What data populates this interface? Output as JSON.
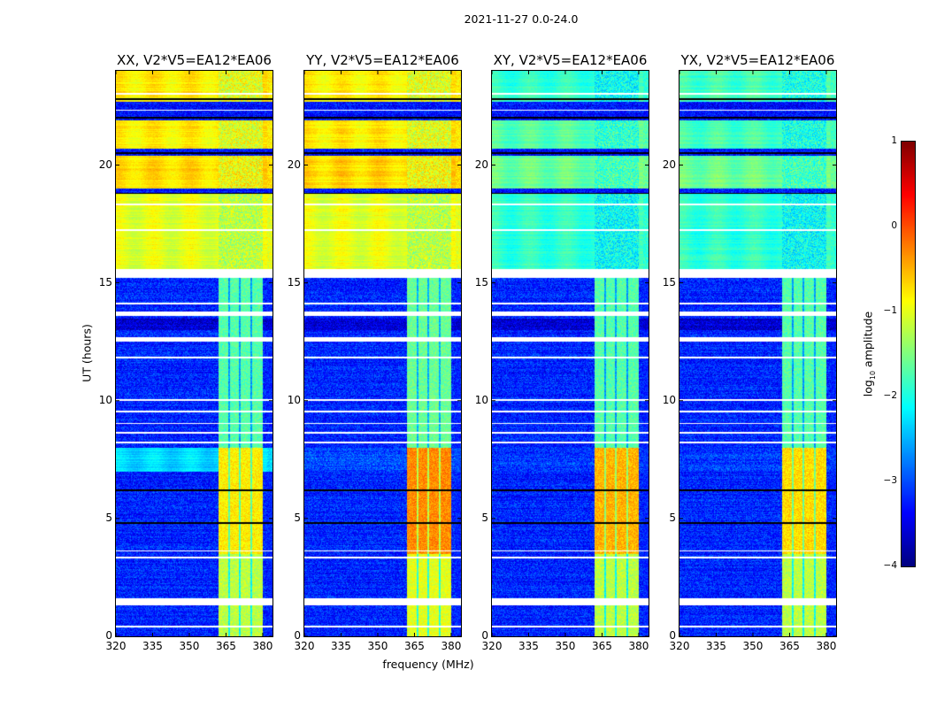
{
  "chart_data": {
    "type": "heatmap",
    "title": "2021-11-27 0.0-24.0",
    "xlabel": "frequency (MHz)",
    "ylabel": "UT (hours)",
    "xlim": [
      320,
      384
    ],
    "ylim": [
      0,
      24
    ],
    "xticks": [
      "320",
      "335",
      "350",
      "365",
      "380"
    ],
    "xtick_values": [
      320,
      335,
      350,
      365,
      380
    ],
    "yticks": [
      "0",
      "5",
      "10",
      "15",
      "20"
    ],
    "ytick_values": [
      0,
      5,
      10,
      15,
      20
    ],
    "panels": [
      {
        "title": "XX, V2*V5=EA12*EA06",
        "pol": "XX"
      },
      {
        "title": "YY, V2*V5=EA12*EA06",
        "pol": "YY"
      },
      {
        "title": "XY, V2*V5=EA12*EA06",
        "pol": "XY"
      },
      {
        "title": "YX, V2*V5=EA12*EA06",
        "pol": "YX"
      }
    ],
    "colorbar": {
      "label_prefix": "log",
      "label_sub": "10",
      "label_suffix": " amplitude",
      "colormap": "jet",
      "range": [
        -4,
        1
      ],
      "ticks": [
        "1",
        "0",
        "−1",
        "−2",
        "−3",
        "−4"
      ],
      "tick_values": [
        1,
        0,
        -1,
        -2,
        -3,
        -4
      ]
    },
    "background_segments": [
      {
        "t": [
          0,
          7.0
        ],
        "levels": [
          -3.2,
          -3.2,
          -3.2,
          -3.2
        ]
      },
      {
        "t": [
          7.0,
          8.0
        ],
        "levels": [
          -2.3,
          -3.0,
          -3.1,
          -3.1
        ]
      },
      {
        "t": [
          8.0,
          13.0
        ],
        "levels": [
          -3.2,
          -3.2,
          -3.2,
          -3.2
        ]
      },
      {
        "t": [
          13.0,
          13.5
        ],
        "levels": [
          -3.6,
          -3.6,
          -3.6,
          -3.6
        ]
      },
      {
        "t": [
          13.5,
          15.2
        ],
        "levels": [
          -3.2,
          -3.2,
          -3.2,
          -3.2
        ]
      },
      {
        "t": [
          15.6,
          18.8
        ],
        "levels": [
          -1.0,
          -1.0,
          -1.9,
          -1.9
        ]
      },
      {
        "t": [
          18.8,
          19.0
        ],
        "levels": [
          -3.3,
          -3.3,
          -3.3,
          -3.3
        ]
      },
      {
        "t": [
          19.0,
          20.4
        ],
        "levels": [
          -0.7,
          -0.7,
          -1.6,
          -1.6
        ]
      },
      {
        "t": [
          20.4,
          20.7
        ],
        "levels": [
          -3.3,
          -3.3,
          -3.3,
          -3.3
        ]
      },
      {
        "t": [
          20.7,
          21.9
        ],
        "levels": [
          -0.8,
          -0.8,
          -1.7,
          -1.8
        ]
      },
      {
        "t": [
          21.9,
          22.7
        ],
        "levels": [
          -3.3,
          -3.3,
          -3.3,
          -3.3
        ]
      },
      {
        "t": [
          22.7,
          24.0
        ],
        "levels": [
          -0.8,
          -0.8,
          -1.9,
          -1.8
        ]
      }
    ],
    "rfi_bands_mhz": [
      [
        362,
        366
      ],
      [
        366.8,
        370.3
      ],
      [
        371,
        375
      ],
      [
        375.8,
        380
      ]
    ],
    "rfi_segments": [
      {
        "t": [
          0,
          3.5
        ],
        "levels": [
          -1.2,
          -1.0,
          -1.2,
          -1.2
        ]
      },
      {
        "t": [
          3.5,
          8.0
        ],
        "levels": [
          -0.8,
          -0.3,
          -0.5,
          -0.7
        ]
      },
      {
        "t": [
          8.0,
          15.2
        ],
        "levels": [
          -1.7,
          -1.6,
          -1.7,
          -1.7
        ]
      }
    ],
    "flagged_rows_white": [
      [
        0.38,
        0.45
      ],
      [
        1.3,
        1.6
      ],
      [
        3.3,
        3.37
      ],
      [
        3.6,
        3.66
      ],
      [
        8.2,
        8.27
      ],
      [
        8.6,
        8.66
      ],
      [
        9.0,
        9.06
      ],
      [
        9.5,
        9.56
      ],
      [
        10.0,
        10.06
      ],
      [
        11.8,
        11.86
      ],
      [
        12.5,
        12.7
      ],
      [
        13.6,
        13.8
      ],
      [
        14.1,
        14.16
      ],
      [
        15.2,
        15.6
      ],
      [
        17.2,
        17.26
      ],
      [
        18.3,
        18.36
      ],
      [
        22.3,
        22.36
      ],
      [
        23.0,
        23.06
      ]
    ],
    "flagged_rows_black": [
      4.8,
      6.2,
      18.8,
      20.5,
      22.0,
      22.8
    ]
  }
}
